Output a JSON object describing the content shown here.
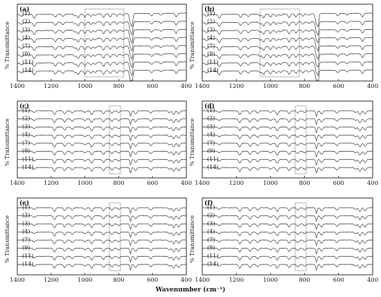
{
  "figure": {
    "x_axis_title": "Wavenumber (cm⁻¹)",
    "y_axis_title": "% Transmittance"
  },
  "chart_data": [
    {
      "panel": "(a)",
      "type": "line",
      "xlim": [
        1400,
        400
      ],
      "x_ticks": [
        1400,
        1200,
        1000,
        800,
        600,
        400
      ],
      "ylabel": "% Transmittance",
      "series": [
        {
          "name": "(1)"
        },
        {
          "name": "(2)"
        },
        {
          "name": "(3)"
        },
        {
          "name": "(4)"
        },
        {
          "name": "(7)"
        },
        {
          "name": "(9)"
        },
        {
          "name": "(11)"
        },
        {
          "name": "(14)"
        }
      ],
      "highlight_x": [
        1000,
        770
      ],
      "bands_cm1": [
        1375,
        1300,
        1175,
        1130,
        1060,
        1040,
        1000,
        965,
        940,
        890,
        850,
        810,
        775,
        730,
        720,
        605,
        550,
        460
      ]
    },
    {
      "panel": "(b)",
      "type": "line",
      "xlim": [
        1400,
        400
      ],
      "x_ticks": [
        1400,
        1200,
        1000,
        800,
        600,
        400
      ],
      "ylabel": "% Transmittance",
      "series": [
        {
          "name": "(1)"
        },
        {
          "name": "(2)"
        },
        {
          "name": "(3)"
        },
        {
          "name": "(4)"
        },
        {
          "name": "(7)"
        },
        {
          "name": "(9)"
        },
        {
          "name": "(11)"
        },
        {
          "name": "(14)"
        }
      ],
      "highlight_x": [
        1060,
        830
      ],
      "bands_cm1": [
        1375,
        1300,
        1175,
        1130,
        1060,
        1040,
        1000,
        965,
        940,
        890,
        850,
        810,
        775,
        730,
        720,
        605,
        550,
        460
      ]
    },
    {
      "panel": "(c)",
      "type": "line",
      "xlim": [
        1400,
        400
      ],
      "x_ticks": [
        1400,
        1200,
        1000,
        800,
        600,
        400
      ],
      "ylabel": "% Transmittance",
      "series": [
        {
          "name": "(1)"
        },
        {
          "name": "(2)"
        },
        {
          "name": "(3)"
        },
        {
          "name": "(4)"
        },
        {
          "name": "(7)"
        },
        {
          "name": "(9)"
        },
        {
          "name": "(11)"
        },
        {
          "name": "(14)"
        }
      ],
      "highlight_x": [
        855,
        790
      ],
      "bands_cm1": [
        1300,
        1180,
        1120,
        1075,
        1000,
        960,
        890,
        840,
        800,
        730,
        700,
        610,
        500,
        475,
        445
      ]
    },
    {
      "panel": "(d)",
      "type": "line",
      "xlim": [
        1400,
        400
      ],
      "x_ticks": [
        1400,
        1200,
        1000,
        800,
        600,
        400
      ],
      "ylabel": "% Transmittance",
      "series": [
        {
          "name": "(1)"
        },
        {
          "name": "(2)"
        },
        {
          "name": "(3)"
        },
        {
          "name": "(4)"
        },
        {
          "name": "(7)"
        },
        {
          "name": "(9)"
        },
        {
          "name": "(11)"
        },
        {
          "name": "(14)"
        }
      ],
      "highlight_x": [
        855,
        790
      ],
      "bands_cm1": [
        1300,
        1180,
        1120,
        1075,
        1000,
        960,
        890,
        840,
        800,
        730,
        700,
        610,
        500,
        475,
        445
      ]
    },
    {
      "panel": "(e)",
      "type": "line",
      "xlim": [
        1400,
        400
      ],
      "x_ticks": [
        1400,
        1200,
        1000,
        800,
        600,
        400
      ],
      "ylabel": "% Transmittance",
      "series": [
        {
          "name": "(1)"
        },
        {
          "name": "(2)"
        },
        {
          "name": "(3)"
        },
        {
          "name": "(4)"
        },
        {
          "name": "(7)"
        },
        {
          "name": "(9)"
        },
        {
          "name": "(11)"
        },
        {
          "name": "(14)"
        }
      ],
      "highlight_x": [
        855,
        790
      ],
      "bands_cm1": [
        1300,
        1180,
        1120,
        1075,
        1000,
        960,
        890,
        840,
        800,
        730,
        700,
        610,
        500,
        475,
        445
      ]
    },
    {
      "panel": "(f)",
      "type": "line",
      "xlim": [
        1400,
        400
      ],
      "x_ticks": [
        1400,
        1200,
        1000,
        800,
        600,
        400
      ],
      "ylabel": "% Transmittance",
      "series": [
        {
          "name": "(1)"
        },
        {
          "name": "(2)"
        },
        {
          "name": "(3)"
        },
        {
          "name": "(4)"
        },
        {
          "name": "(7)"
        },
        {
          "name": "(9)"
        },
        {
          "name": "(11)"
        },
        {
          "name": "(14)"
        }
      ],
      "highlight_x": [
        855,
        790
      ],
      "bands_cm1": [
        1300,
        1180,
        1120,
        1075,
        1000,
        960,
        890,
        840,
        800,
        730,
        700,
        610,
        500,
        475,
        445
      ]
    }
  ]
}
